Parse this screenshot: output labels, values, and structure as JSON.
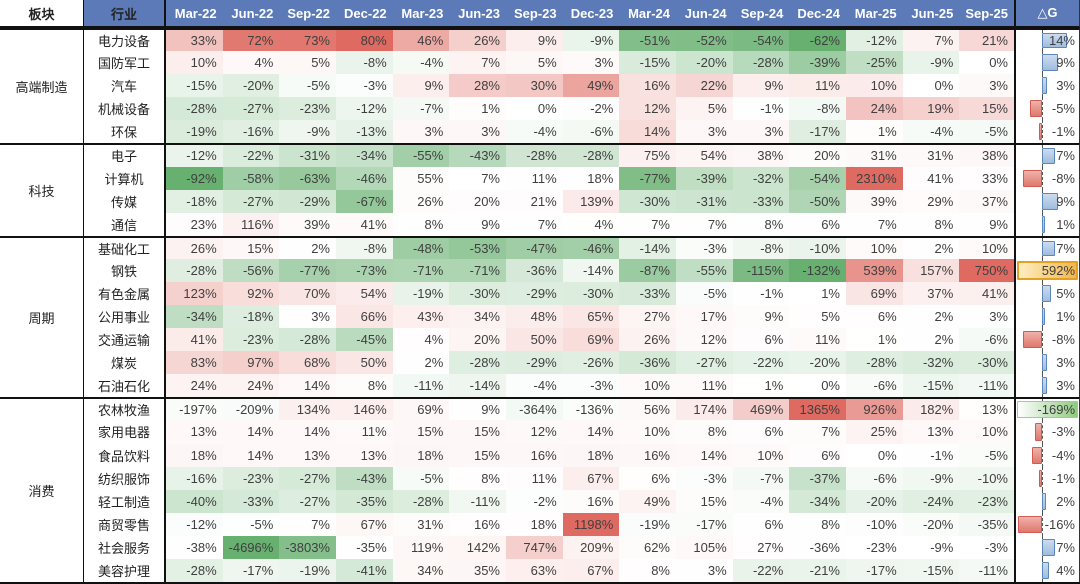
{
  "chart_data": {
    "type": "heatmap",
    "title": "",
    "unit": "%",
    "col_headers": {
      "sector": "板块",
      "industry": "行业",
      "delta": "△G"
    },
    "columns": [
      "Mar-22",
      "Jun-22",
      "Sep-22",
      "Dec-22",
      "Mar-23",
      "Jun-23",
      "Sep-23",
      "Dec-23",
      "Mar-24",
      "Jun-24",
      "Sep-24",
      "Dec-24",
      "Mar-25",
      "Jun-25",
      "Sep-25"
    ],
    "colors": {
      "header_bg": "#5b7ab7",
      "header_text": "#ffffff",
      "heat_red_max": "#df6a61",
      "heat_green_max": "#67b070",
      "delta_bar_pos": "#9fbcde",
      "delta_bar_pos_border": "#5b87bd",
      "delta_bar_neg": "#e0776c",
      "delta_bar_neg_border": "#cf5b52",
      "delta_gold_fill": "#f2b64e",
      "delta_green_fill": "#8fca81"
    },
    "groups": [
      {
        "sector": "高端制造",
        "rows": [
          {
            "industry": "电力设备",
            "values": [
              33,
              72,
              73,
              80,
              46,
              26,
              9,
              -9,
              -51,
              -52,
              -54,
              -62,
              -12,
              7,
              21
            ],
            "delta": 14,
            "sp": 80,
            "sn": 62,
            "dmode": "bar"
          },
          {
            "industry": "国防军工",
            "values": [
              10,
              4,
              5,
              -8,
              -4,
              7,
              5,
              3,
              -15,
              -20,
              -28,
              -39,
              -25,
              -9,
              0
            ],
            "delta": 9,
            "sp": 90,
            "sn": 60,
            "dmode": "bar"
          },
          {
            "industry": "汽车",
            "values": [
              -15,
              -20,
              -5,
              -3,
              9,
              28,
              30,
              49,
              16,
              22,
              9,
              11,
              10,
              0,
              3
            ],
            "delta": 3,
            "sp": 80,
            "sn": 100,
            "dmode": "bar"
          },
          {
            "industry": "机械设备",
            "values": [
              -28,
              -27,
              -23,
              -12,
              -7,
              1,
              0,
              -2,
              12,
              5,
              -1,
              -8,
              24,
              19,
              15
            ],
            "delta": -5,
            "sp": 60,
            "sn": 100,
            "dmode": "bar"
          },
          {
            "industry": "环保",
            "values": [
              -19,
              -16,
              -9,
              -13,
              3,
              3,
              -4,
              -6,
              14,
              3,
              3,
              -17,
              1,
              -4,
              -5
            ],
            "delta": -1,
            "sp": 60,
            "sn": 80,
            "dmode": "bar"
          }
        ]
      },
      {
        "sector": "科技",
        "rows": [
          {
            "industry": "电子",
            "values": [
              -12,
              -22,
              -31,
              -34,
              -55,
              -43,
              -28,
              -28,
              75,
              54,
              38,
              20,
              31,
              31,
              38
            ],
            "delta": 7,
            "sp": 800,
            "sn": 90,
            "dmode": "bar"
          },
          {
            "industry": "计算机",
            "values": [
              -92,
              -58,
              -63,
              -46,
              55,
              7,
              11,
              18,
              -77,
              -39,
              -32,
              -54,
              2310,
              41,
              33
            ],
            "delta": -8,
            "sp": 2310,
            "sn": 92,
            "dmode": "bar"
          },
          {
            "industry": "传媒",
            "values": [
              -18,
              -27,
              -29,
              -67,
              26,
              20,
              21,
              139,
              -30,
              -31,
              -33,
              -50,
              39,
              29,
              37
            ],
            "delta": 9,
            "sp": 1000,
            "sn": 95,
            "dmode": "bar"
          },
          {
            "industry": "通信",
            "values": [
              23,
              116,
              39,
              41,
              8,
              9,
              7,
              4,
              7,
              7,
              8,
              6,
              7,
              8,
              9
            ],
            "delta": 1,
            "sp": 1200,
            "sn": 400,
            "dmode": "bar"
          }
        ]
      },
      {
        "sector": "周期",
        "rows": [
          {
            "industry": "基础化工",
            "values": [
              26,
              15,
              2,
              -8,
              -48,
              -53,
              -47,
              -46,
              -14,
              -3,
              -8,
              -10,
              10,
              2,
              10
            ],
            "delta": 7,
            "sp": 300,
            "sn": 75,
            "dmode": "bar"
          },
          {
            "industry": "钢铁",
            "values": [
              -28,
              -56,
              -77,
              -73,
              -71,
              -71,
              -36,
              -14,
              -87,
              -55,
              -115,
              -132,
              539,
              157,
              750
            ],
            "delta": 592,
            "sp": 750,
            "sn": 132,
            "dmode": "gold"
          },
          {
            "industry": "有色金属",
            "values": [
              123,
              92,
              70,
              54,
              -19,
              -30,
              -29,
              -30,
              -33,
              -5,
              -1,
              1,
              69,
              37,
              41
            ],
            "delta": 5,
            "sp": 400,
            "sn": 130,
            "dmode": "bar"
          },
          {
            "industry": "公用事业",
            "values": [
              -34,
              -18,
              3,
              66,
              43,
              34,
              48,
              65,
              27,
              17,
              9,
              5,
              6,
              2,
              3
            ],
            "delta": 1,
            "sp": 400,
            "sn": 80,
            "dmode": "bar"
          },
          {
            "industry": "交通运输",
            "values": [
              41,
              -23,
              -28,
              -45,
              4,
              20,
              50,
              69,
              26,
              12,
              6,
              11,
              1,
              2,
              -6
            ],
            "delta": -8,
            "sp": 300,
            "sn": 100,
            "dmode": "bar"
          },
          {
            "industry": "煤炭",
            "values": [
              83,
              97,
              68,
              50,
              2,
              -28,
              -29,
              -26,
              -36,
              -27,
              -22,
              -20,
              -28,
              -32,
              -30
            ],
            "delta": 3,
            "sp": 300,
            "sn": 130,
            "dmode": "bar"
          },
          {
            "industry": "石油石化",
            "values": [
              24,
              24,
              14,
              8,
              -11,
              -14,
              -4,
              -3,
              10,
              11,
              1,
              0,
              -6,
              -15,
              -11
            ],
            "delta": 3,
            "sp": 300,
            "sn": 130,
            "dmode": "bar"
          }
        ]
      },
      {
        "sector": "消费",
        "rows": [
          {
            "industry": "农林牧渔",
            "values": [
              -197,
              -209,
              134,
              146,
              69,
              9,
              -364,
              -136,
              56,
              174,
              469,
              1365,
              926,
              182,
              13
            ],
            "delta": -169,
            "sp": 1365,
            "sn": 4696,
            "dmode": "greenfill"
          },
          {
            "industry": "家用电器",
            "values": [
              13,
              14,
              14,
              11,
              15,
              15,
              12,
              14,
              10,
              8,
              6,
              7,
              25,
              13,
              10
            ],
            "delta": -3,
            "sp": 300,
            "sn": 300,
            "dmode": "bar"
          },
          {
            "industry": "食品饮料",
            "values": [
              18,
              14,
              13,
              13,
              18,
              15,
              16,
              18,
              16,
              14,
              10,
              6,
              0,
              -1,
              -5
            ],
            "delta": -4,
            "sp": 300,
            "sn": 150,
            "dmode": "bar"
          },
          {
            "industry": "纺织服饰",
            "values": [
              -16,
              -23,
              -27,
              -43,
              -5,
              8,
              11,
              67,
              6,
              -3,
              -7,
              -37,
              -6,
              -9,
              -10
            ],
            "delta": -1,
            "sp": 600,
            "sn": 100,
            "dmode": "bar"
          },
          {
            "industry": "轻工制造",
            "values": [
              -40,
              -33,
              -27,
              -35,
              -28,
              -11,
              -2,
              16,
              49,
              15,
              -4,
              -34,
              -20,
              -24,
              -23
            ],
            "delta": 2,
            "sp": 600,
            "sn": 120,
            "dmode": "bar"
          },
          {
            "industry": "商贸零售",
            "values": [
              -12,
              -5,
              7,
              67,
              31,
              16,
              18,
              1198,
              -19,
              -17,
              6,
              8,
              -10,
              -20,
              -35
            ],
            "delta": -16,
            "sp": 1198,
            "sn": 500,
            "dmode": "bar"
          },
          {
            "industry": "社会服务",
            "values": [
              -38,
              -4696,
              -3803,
              -35,
              119,
              142,
              747,
              209,
              62,
              105,
              27,
              -36,
              -23,
              -9,
              -3
            ],
            "delta": 7,
            "sp": 2310,
            "sn": 4696,
            "dmode": "bar"
          },
          {
            "industry": "美容护理",
            "values": [
              -28,
              -17,
              -19,
              -41,
              34,
              35,
              63,
              67,
              8,
              3,
              -22,
              -21,
              -17,
              -15,
              -11
            ],
            "delta": 4,
            "sp": 600,
            "sn": 150,
            "dmode": "bar"
          }
        ]
      }
    ]
  }
}
